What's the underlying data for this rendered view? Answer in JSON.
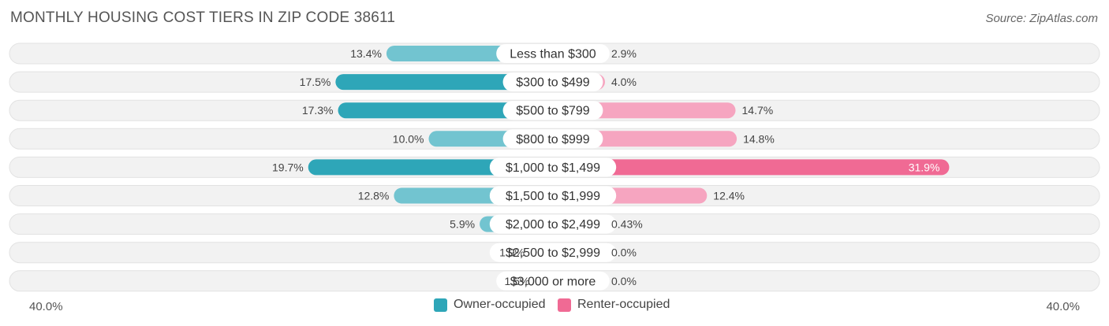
{
  "title": "MONTHLY HOUSING COST TIERS IN ZIP CODE 38611",
  "source": "Source: ZipAtlas.com",
  "colors": {
    "owner": "#2ea6b8",
    "owner_light": "#72c4d0",
    "renter": "#f06a94",
    "renter_light": "#f6a5c0",
    "row_bg": "#efefef"
  },
  "legend": {
    "owner_label": "Owner-occupied",
    "renter_label": "Renter-occupied"
  },
  "axis": {
    "left_label": "40.0%",
    "right_label": "40.0%"
  },
  "chart_data": {
    "type": "bar",
    "orientation": "horizontal-diverging",
    "title": "MONTHLY HOUSING COST TIERS IN ZIP CODE 38611",
    "categories": [
      "Less than $300",
      "$300 to $499",
      "$500 to $799",
      "$800 to $999",
      "$1,000 to $1,499",
      "$1,500 to $1,999",
      "$2,000 to $2,499",
      "$2,500 to $2,999",
      "$3,000 or more"
    ],
    "series": [
      {
        "name": "Owner-occupied",
        "values": [
          13.4,
          17.5,
          17.3,
          10.0,
          19.7,
          12.8,
          5.9,
          1.9,
          1.5
        ],
        "labels": [
          "13.4%",
          "17.5%",
          "17.3%",
          "10.0%",
          "19.7%",
          "12.8%",
          "5.9%",
          "1.9%",
          "1.5%"
        ]
      },
      {
        "name": "Renter-occupied",
        "values": [
          2.9,
          4.0,
          14.7,
          14.8,
          31.9,
          12.4,
          0.43,
          0.0,
          0.0
        ],
        "labels": [
          "2.9%",
          "4.0%",
          "14.7%",
          "14.8%",
          "31.9%",
          "12.4%",
          "0.43%",
          "0.0%",
          "0.0%"
        ]
      }
    ],
    "xlim": [
      -40,
      40
    ],
    "legend_position": "bottom-center"
  }
}
